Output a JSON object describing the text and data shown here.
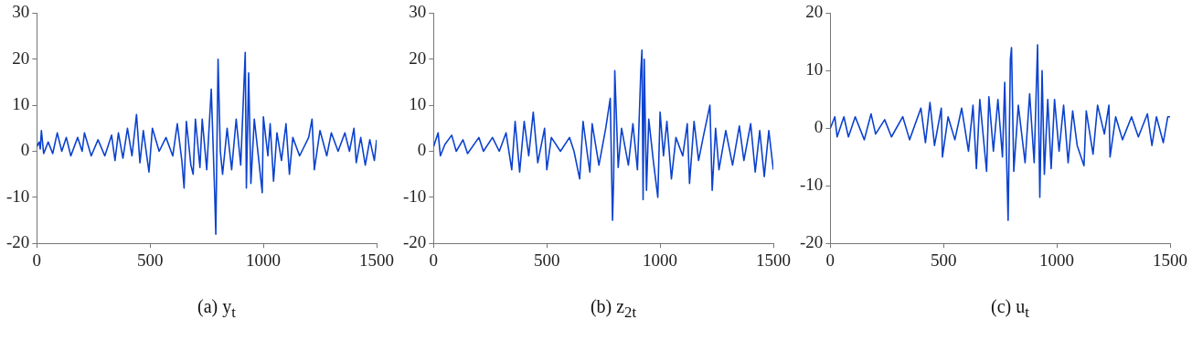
{
  "chart_data": [
    {
      "type": "line",
      "title": "(a) y$_{t}$",
      "xlim": [
        0,
        1500
      ],
      "xticks": [
        0,
        500,
        1000,
        1500
      ],
      "ylim": [
        -20,
        30
      ],
      "yticks": [
        -20,
        -10,
        0,
        10,
        20,
        30
      ],
      "x": [
        0,
        10,
        15,
        20,
        30,
        50,
        70,
        90,
        110,
        130,
        150,
        180,
        200,
        210,
        240,
        270,
        300,
        330,
        345,
        360,
        380,
        400,
        420,
        440,
        455,
        470,
        495,
        510,
        540,
        570,
        600,
        620,
        640,
        650,
        660,
        680,
        690,
        700,
        720,
        730,
        750,
        770,
        785,
        790,
        800,
        810,
        820,
        840,
        860,
        880,
        900,
        920,
        925,
        935,
        945,
        960,
        980,
        995,
        1000,
        1020,
        1030,
        1045,
        1060,
        1080,
        1100,
        1115,
        1130,
        1160,
        1200,
        1215,
        1225,
        1250,
        1280,
        1300,
        1330,
        1360,
        1380,
        1400,
        1410,
        1430,
        1450,
        1470,
        1490,
        1500
      ],
      "series": [
        {
          "color": "#0b42cf",
          "values": [
            1,
            2,
            0.5,
            4.5,
            -0.5,
            2,
            -0.5,
            4,
            0,
            3,
            -1,
            3,
            0,
            4,
            -1,
            2.5,
            -1,
            3.5,
            -2,
            4,
            -1.5,
            5,
            -1,
            8,
            -2.5,
            4.5,
            -4.5,
            5,
            0,
            3,
            -1,
            6,
            -2,
            -8,
            6.5,
            -3,
            -5,
            7,
            -3.5,
            7,
            -4,
            13.5,
            -9,
            -18,
            20,
            0,
            -5,
            5,
            -4,
            7,
            -3,
            21.5,
            -8,
            17,
            -7,
            7,
            -2,
            -9,
            7.5,
            -1,
            6,
            -6.5,
            4,
            -2,
            6,
            -5,
            3,
            -1,
            3,
            7,
            -4,
            4.5,
            -1,
            4,
            0,
            4,
            0,
            5,
            -2.5,
            3,
            -3,
            2.5,
            -2,
            2.5
          ]
        }
      ]
    },
    {
      "type": "line",
      "title": "(b) z$_{2t}$",
      "xlim": [
        0,
        1500
      ],
      "xticks": [
        0,
        500,
        1000,
        1500
      ],
      "ylim": [
        -20,
        30
      ],
      "yticks": [
        -20,
        -10,
        0,
        10,
        20,
        30
      ],
      "x": [
        0,
        20,
        30,
        50,
        80,
        100,
        130,
        150,
        200,
        220,
        260,
        290,
        320,
        345,
        360,
        380,
        400,
        420,
        440,
        460,
        490,
        500,
        520,
        560,
        600,
        620,
        645,
        660,
        680,
        690,
        700,
        730,
        760,
        780,
        790,
        795,
        800,
        815,
        830,
        860,
        880,
        900,
        915,
        920,
        925,
        930,
        940,
        950,
        970,
        990,
        1000,
        1015,
        1030,
        1050,
        1070,
        1100,
        1120,
        1130,
        1150,
        1170,
        1190,
        1220,
        1230,
        1245,
        1260,
        1290,
        1320,
        1350,
        1370,
        1400,
        1420,
        1440,
        1460,
        1480,
        1500
      ],
      "series": [
        {
          "color": "#0b42cf",
          "values": [
            1,
            4,
            -1,
            1.5,
            3.5,
            0,
            2.5,
            -0.5,
            3,
            0,
            3,
            0,
            4,
            -4,
            6.5,
            -4.5,
            6.5,
            -1,
            8.5,
            -2.5,
            5,
            -4,
            3,
            0,
            3,
            0,
            -6,
            6.5,
            -1,
            -4.5,
            6,
            -3,
            5,
            11.5,
            -15,
            -6,
            17.5,
            -3.5,
            5,
            -3,
            6,
            -4,
            17.5,
            22,
            -10.5,
            20,
            -8.5,
            7,
            -2,
            -10,
            8.5,
            -1,
            6.5,
            -6,
            3,
            -1,
            6,
            -7,
            6.5,
            -2,
            3,
            10,
            -8.5,
            5,
            -4,
            4.5,
            -3,
            5.5,
            -2,
            6,
            -4.5,
            4.5,
            -5.5,
            4.5,
            -4
          ]
        }
      ]
    },
    {
      "type": "line",
      "title": "(c) u$_{t}$",
      "xlim": [
        0,
        1500
      ],
      "xticks": [
        0,
        500,
        1000,
        1500
      ],
      "ylim": [
        -20,
        20
      ],
      "yticks": [
        -20,
        -10,
        0,
        10,
        20
      ],
      "x": [
        0,
        20,
        30,
        60,
        80,
        110,
        150,
        180,
        200,
        240,
        270,
        320,
        350,
        400,
        420,
        440,
        460,
        490,
        495,
        520,
        550,
        580,
        610,
        630,
        645,
        660,
        690,
        700,
        720,
        740,
        760,
        770,
        785,
        795,
        800,
        810,
        830,
        860,
        880,
        900,
        915,
        925,
        935,
        945,
        960,
        975,
        990,
        1010,
        1030,
        1050,
        1070,
        1090,
        1120,
        1130,
        1160,
        1180,
        1210,
        1230,
        1235,
        1260,
        1290,
        1330,
        1360,
        1400,
        1420,
        1440,
        1470,
        1490,
        1500
      ],
      "series": [
        {
          "color": "#0b42cf",
          "values": [
            0,
            2,
            -1.5,
            2,
            -1.5,
            2,
            -2,
            2.5,
            -1,
            1.5,
            -1.5,
            2,
            -2,
            3.5,
            -2.5,
            4.5,
            -3,
            3.5,
            -5,
            2,
            -2,
            3.5,
            -4,
            4,
            -7,
            5,
            -7.5,
            5.5,
            -4,
            5,
            -5,
            8,
            -16,
            12,
            14,
            -7.5,
            4,
            -6,
            6,
            -6,
            14.5,
            -12,
            10,
            -8,
            5,
            -7,
            5,
            -4,
            4,
            -6,
            3,
            -3,
            -6.5,
            3,
            -4.5,
            4,
            -1,
            4,
            -5,
            2,
            -2,
            2,
            -1.5,
            2.5,
            -3,
            2,
            -2.5,
            2,
            2
          ]
        }
      ]
    }
  ]
}
